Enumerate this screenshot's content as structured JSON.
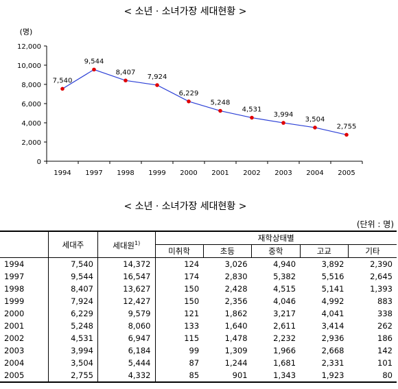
{
  "chart_title": "< 소년 · 소녀가장 세대현황 >",
  "table_title": "< 소년 · 소녀가장 세대현황 >",
  "unit_note": "(단위 : 명)",
  "chart_data": {
    "type": "line",
    "title": "< 소년 · 소녀가장 세대현황 >",
    "ylabel": "(명)",
    "xlabel": "",
    "categories": [
      "1994",
      "1997",
      "1998",
      "1999",
      "2000",
      "2001",
      "2002",
      "2003",
      "2004",
      "2005"
    ],
    "values": [
      7540,
      9544,
      8407,
      7924,
      6229,
      5248,
      4531,
      3994,
      3504,
      2755
    ],
    "data_labels": [
      "7,540",
      "9,544",
      "8,407",
      "7,924",
      "6,229",
      "5,248",
      "4,531",
      "3,994",
      "3,504",
      "2,755"
    ],
    "yticks": [
      "0",
      "2,000",
      "4,000",
      "6,000",
      "8,000",
      "10,000",
      "12,000"
    ],
    "ytick_values": [
      0,
      2000,
      4000,
      6000,
      8000,
      10000,
      12000
    ],
    "ylim": [
      0,
      12000
    ],
    "grid": false,
    "line_color": "#2b3fd6",
    "marker_color": "#e00000"
  },
  "table": {
    "headers": {
      "household_head": "세대주",
      "household_members": "세대원",
      "footnote_mark": "1)",
      "school_status": "재학상태별",
      "sub": [
        "미취학",
        "초등",
        "중학",
        "고교",
        "기타"
      ]
    },
    "rows": [
      [
        "1994",
        "7,540",
        "14,372",
        "124",
        "3,026",
        "4,940",
        "3,892",
        "2,390"
      ],
      [
        "1997",
        "9,544",
        "16,547",
        "174",
        "2,830",
        "5,382",
        "5,516",
        "2,645"
      ],
      [
        "1998",
        "8,407",
        "13,627",
        "150",
        "2,428",
        "4,515",
        "5,141",
        "1,393"
      ],
      [
        "1999",
        "7,924",
        "12,427",
        "150",
        "2,356",
        "4,046",
        "4,992",
        "883"
      ],
      [
        "2000",
        "6,229",
        "9,579",
        "121",
        "1,862",
        "3,217",
        "4,041",
        "338"
      ],
      [
        "2001",
        "5,248",
        "8,060",
        "133",
        "1,640",
        "2,611",
        "3,414",
        "262"
      ],
      [
        "2002",
        "4,531",
        "6,947",
        "115",
        "1,478",
        "2,232",
        "2,936",
        "186"
      ],
      [
        "2003",
        "3,994",
        "6,184",
        "99",
        "1,309",
        "1,966",
        "2,668",
        "142"
      ],
      [
        "2004",
        "3,504",
        "5,444",
        "87",
        "1,244",
        "1,681",
        "2,331",
        "101"
      ],
      [
        "2005",
        "2,755",
        "4,332",
        "85",
        "901",
        "1,343",
        "1,923",
        "80"
      ]
    ]
  }
}
